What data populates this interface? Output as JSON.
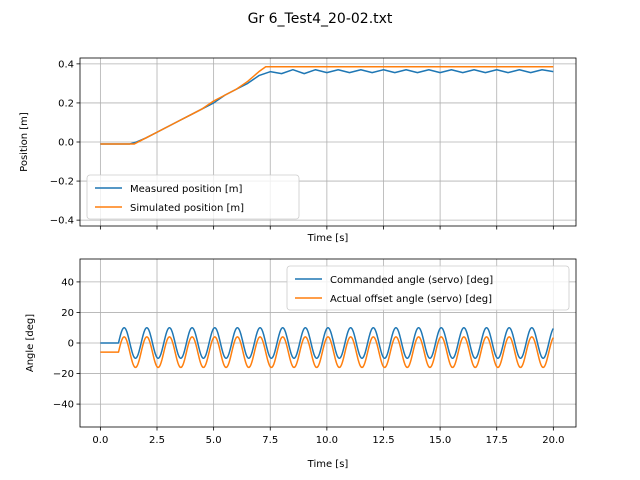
{
  "figure": {
    "title": "Gr 6_Test4_20-02.txt"
  },
  "chart_data": [
    {
      "type": "line",
      "xlabel": "Time [s]",
      "ylabel": "Position [m]",
      "xlim": [
        -0.9,
        21.0
      ],
      "ylim": [
        -0.43,
        0.43
      ],
      "grid": true,
      "legend_placement": "lower-left",
      "x_tick_labels_visible": false,
      "x_ticks": [
        0.0,
        2.5,
        5.0,
        7.5,
        10.0,
        12.5,
        15.0,
        17.5,
        20.0
      ],
      "y_ticks": [
        -0.4,
        -0.2,
        0.0,
        0.2,
        0.4
      ],
      "y_tick_labels": [
        "−0.4",
        "−0.2",
        "0.0",
        "0.2",
        "0.4"
      ],
      "series": [
        {
          "name": "Measured position [m]",
          "color": "#1f77b4",
          "points": [
            [
              0,
              -0.01
            ],
            [
              1.3,
              -0.01
            ],
            [
              1.6,
              0.0
            ],
            [
              2.0,
              0.02
            ],
            [
              2.5,
              0.05
            ],
            [
              3.0,
              0.08
            ],
            [
              3.5,
              0.11
            ],
            [
              4.0,
              0.14
            ],
            [
              4.5,
              0.17
            ],
            [
              5.0,
              0.2
            ],
            [
              5.5,
              0.24
            ],
            [
              6.0,
              0.27
            ],
            [
              6.5,
              0.3
            ],
            [
              7.0,
              0.34
            ],
            [
              7.5,
              0.36
            ],
            [
              8.0,
              0.35
            ],
            [
              8.5,
              0.37
            ],
            [
              9.0,
              0.35
            ],
            [
              9.5,
              0.37
            ],
            [
              10.0,
              0.355
            ],
            [
              10.5,
              0.37
            ],
            [
              11.0,
              0.355
            ],
            [
              11.5,
              0.37
            ],
            [
              12.0,
              0.355
            ],
            [
              12.5,
              0.37
            ],
            [
              13.0,
              0.355
            ],
            [
              13.5,
              0.37
            ],
            [
              14.0,
              0.355
            ],
            [
              14.5,
              0.37
            ],
            [
              15.0,
              0.355
            ],
            [
              15.5,
              0.37
            ],
            [
              16.0,
              0.355
            ],
            [
              16.5,
              0.37
            ],
            [
              17.0,
              0.355
            ],
            [
              17.5,
              0.37
            ],
            [
              18.0,
              0.355
            ],
            [
              18.5,
              0.37
            ],
            [
              19.0,
              0.355
            ],
            [
              19.5,
              0.37
            ],
            [
              20.0,
              0.36
            ]
          ]
        },
        {
          "name": "Simulated position [m]",
          "color": "#ff7f0e",
          "points": [
            [
              0,
              -0.01
            ],
            [
              1.5,
              -0.01
            ],
            [
              2.0,
              0.02
            ],
            [
              2.5,
              0.05
            ],
            [
              3.0,
              0.08
            ],
            [
              3.5,
              0.11
            ],
            [
              4.0,
              0.14
            ],
            [
              4.5,
              0.17
            ],
            [
              5.0,
              0.21
            ],
            [
              5.5,
              0.24
            ],
            [
              6.0,
              0.27
            ],
            [
              6.5,
              0.31
            ],
            [
              7.0,
              0.36
            ],
            [
              7.3,
              0.385
            ],
            [
              20.0,
              0.385
            ]
          ]
        }
      ]
    },
    {
      "type": "line",
      "xlabel": "Time [s]",
      "ylabel": "Angle [deg]",
      "xlim": [
        -0.9,
        21.0
      ],
      "ylim": [
        -55,
        55
      ],
      "grid": true,
      "legend_placement": "upper-right",
      "x_ticks": [
        0.0,
        2.5,
        5.0,
        7.5,
        10.0,
        12.5,
        15.0,
        17.5,
        20.0
      ],
      "x_tick_labels": [
        "0.0",
        "2.5",
        "5.0",
        "7.5",
        "10.0",
        "12.5",
        "15.0",
        "17.5",
        "20.0"
      ],
      "y_ticks": [
        -40,
        -20,
        0,
        20,
        40
      ],
      "y_tick_labels": [
        "−40",
        "−20",
        "0",
        "20",
        "40"
      ],
      "series": [
        {
          "name": "Commanded angle (servo) [deg]",
          "color": "#1f77b4",
          "start": 0.0,
          "flat_until": 0.8,
          "flat_value": 0,
          "end": 20.0,
          "period": 1.0,
          "amplitude": 10,
          "offset": 0
        },
        {
          "name": "Actual offset angle (servo) [deg]",
          "color": "#ff7f0e",
          "start": 0.0,
          "flat_until": 0.8,
          "flat_value": -6,
          "end": 20.0,
          "period": 1.0,
          "amplitude": 10,
          "offset": -6
        }
      ]
    }
  ]
}
